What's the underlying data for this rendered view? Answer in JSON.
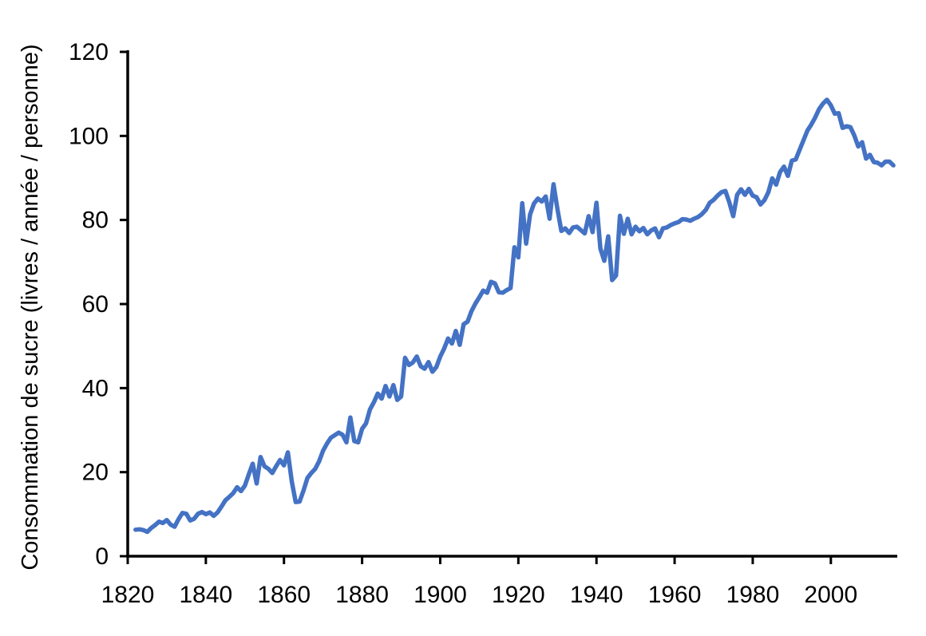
{
  "chart_data": {
    "type": "line",
    "title": "",
    "xlabel": "",
    "ylabel": "Consommation de sucre (livres / année / personne)",
    "xlim": [
      1820,
      2017
    ],
    "ylim": [
      0,
      120
    ],
    "xticks": [
      "1820",
      "1840",
      "1860",
      "1880",
      "1900",
      "1920",
      "1940",
      "1960",
      "1980",
      "2000"
    ],
    "yticks": [
      "0",
      "20",
      "40",
      "60",
      "80",
      "100",
      "120"
    ],
    "grid": false,
    "legend": "none",
    "colors": {
      "series": "#4472C4",
      "axis": "#000000"
    },
    "series": [
      {
        "x": [
          1822,
          1823,
          1824,
          1825,
          1826,
          1827,
          1828,
          1829,
          1830,
          1831,
          1832,
          1833,
          1834,
          1835,
          1836,
          1837,
          1838,
          1839,
          1840,
          1841,
          1842,
          1843,
          1844,
          1845,
          1846,
          1847,
          1848,
          1849,
          1850,
          1851,
          1852,
          1853,
          1854,
          1855,
          1856,
          1857,
          1858,
          1859,
          1860,
          1861,
          1862,
          1863,
          1864,
          1865,
          1866,
          1867,
          1868,
          1869,
          1870,
          1871,
          1872,
          1873,
          1874,
          1875,
          1876,
          1877,
          1878,
          1879,
          1880,
          1881,
          1882,
          1883,
          1884,
          1885,
          1886,
          1887,
          1888,
          1889,
          1890,
          1891,
          1892,
          1893,
          1894,
          1895,
          1896,
          1897,
          1898,
          1899,
          1900,
          1901,
          1902,
          1903,
          1904,
          1905,
          1906,
          1907,
          1908,
          1909,
          1910,
          1911,
          1912,
          1913,
          1914,
          1915,
          1916,
          1917,
          1918,
          1919,
          1920,
          1921,
          1922,
          1923,
          1924,
          1925,
          1926,
          1927,
          1928,
          1929,
          1930,
          1931,
          1932,
          1933,
          1934,
          1935,
          1936,
          1937,
          1938,
          1939,
          1940,
          1941,
          1942,
          1943,
          1944,
          1945,
          1946,
          1947,
          1948,
          1949,
          1950,
          1951,
          1952,
          1953,
          1954,
          1955,
          1956,
          1957,
          1958,
          1959,
          1960,
          1961,
          1962,
          1963,
          1964,
          1965,
          1966,
          1967,
          1968,
          1969,
          1970,
          1971,
          1972,
          1973,
          1974,
          1975,
          1976,
          1977,
          1978,
          1979,
          1980,
          1981,
          1982,
          1983,
          1984,
          1985,
          1986,
          1987,
          1988,
          1989,
          1990,
          1991,
          1992,
          1993,
          1994,
          1995,
          1996,
          1997,
          1998,
          1999,
          2000,
          2001,
          2002,
          2003,
          2004,
          2005,
          2006,
          2007,
          2008,
          2009,
          2010,
          2011,
          2012,
          2013,
          2014,
          2015,
          2016
        ],
        "values": [
          6.3,
          6.4,
          6.2,
          5.8,
          6.7,
          7.4,
          8.2,
          7.9,
          8.6,
          7.5,
          7.0,
          8.8,
          10.3,
          10.1,
          8.5,
          8.9,
          10.1,
          10.5,
          10.0,
          10.4,
          9.6,
          10.4,
          11.8,
          13.3,
          14.1,
          15.0,
          16.4,
          15.5,
          16.8,
          19.5,
          22.0,
          17.3,
          23.6,
          21.4,
          20.8,
          19.8,
          21.4,
          22.9,
          21.6,
          24.7,
          17.8,
          12.9,
          13.0,
          15.6,
          18.6,
          19.8,
          20.8,
          22.6,
          25.1,
          26.8,
          28.2,
          28.8,
          29.4,
          28.9,
          27.1,
          33.0,
          27.4,
          27.1,
          30.3,
          31.6,
          34.9,
          36.6,
          38.7,
          37.5,
          40.5,
          38.0,
          40.7,
          37.2,
          38.0,
          47.2,
          45.5,
          46.1,
          47.5,
          45.2,
          44.6,
          46.2,
          43.9,
          45.0,
          47.5,
          49.4,
          51.8,
          50.6,
          53.6,
          50.3,
          55.2,
          55.8,
          58.3,
          60.1,
          61.6,
          63.2,
          62.7,
          65.3,
          64.9,
          62.8,
          62.7,
          63.3,
          63.8,
          73.5,
          71.1,
          84.0,
          74.4,
          81.3,
          83.9,
          85.1,
          84.4,
          85.6,
          80.3,
          88.5,
          82.6,
          77.4,
          78.0,
          76.9,
          78.2,
          78.4,
          77.6,
          76.8,
          80.9,
          77.1,
          84.1,
          73.2,
          70.3,
          76.1,
          65.7,
          66.8,
          81.0,
          76.7,
          80.3,
          76.6,
          78.4,
          77.3,
          78.1,
          76.6,
          77.5,
          78.0,
          75.9,
          78.0,
          78.2,
          78.8,
          79.2,
          79.5,
          80.2,
          80.1,
          79.8,
          80.3,
          80.7,
          81.4,
          82.4,
          84.1,
          84.8,
          85.8,
          86.6,
          86.9,
          84.2,
          80.9,
          86.0,
          87.3,
          86.0,
          87.4,
          85.8,
          85.4,
          83.7,
          84.7,
          86.6,
          89.9,
          88.4,
          91.4,
          92.7,
          90.5,
          94.1,
          94.4,
          96.7,
          99.0,
          101.3,
          102.7,
          104.4,
          106.4,
          107.7,
          108.6,
          107.3,
          105.3,
          105.4,
          101.9,
          102.3,
          102.1,
          100.1,
          97.5,
          98.5,
          94.6,
          95.5,
          93.8,
          93.6,
          93.0,
          93.9,
          93.9,
          93.0
        ]
      }
    ]
  }
}
